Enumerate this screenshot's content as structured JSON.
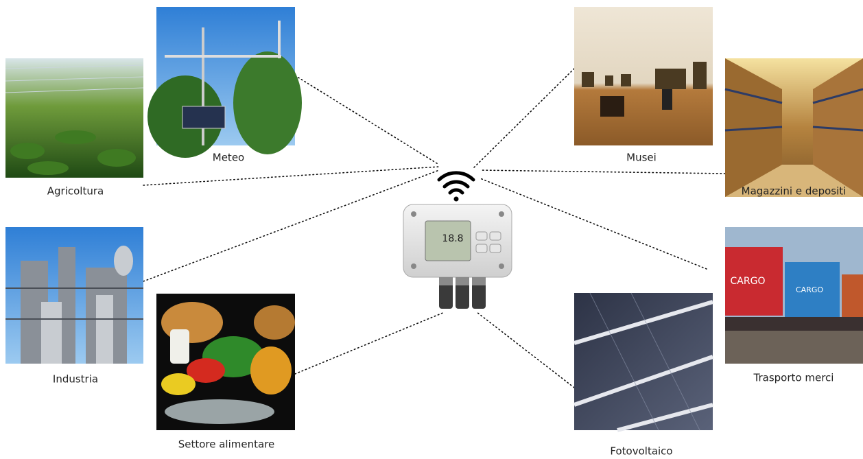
{
  "nodes": [
    {
      "label": "Agricoltura"
    },
    {
      "label": "Meteo"
    },
    {
      "label": "Industria"
    },
    {
      "label": "Settore alimentare"
    },
    {
      "label": "Musei"
    },
    {
      "label": "Magazzini e depositi"
    },
    {
      "label": "Trasporto merci"
    },
    {
      "label": "Fotovoltaico"
    }
  ]
}
